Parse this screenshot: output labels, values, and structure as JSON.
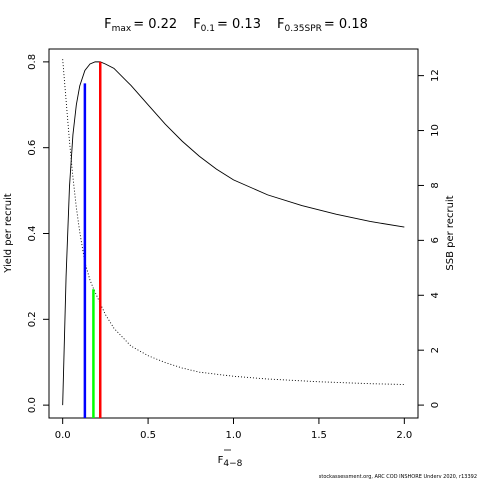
{
  "chart_data": {
    "type": "line",
    "title_parts": [
      {
        "base": "F",
        "sub": "max",
        "value": "= 0.22"
      },
      {
        "base": "F",
        "sub": "0.1",
        "value": "= 0.13"
      },
      {
        "base": "F",
        "sub": "0.35SPR",
        "value": "= 0.18"
      }
    ],
    "xlabel": {
      "base": "F",
      "sub": "4−8"
    },
    "ylabel_left": "Yield per recruit",
    "ylabel_right": "SSB per recruit",
    "xlim": [
      -0.08,
      2.08
    ],
    "ylim_left": [
      -0.03,
      0.83
    ],
    "ylim_right": [
      -0.47,
      12.97
    ],
    "x_ticks": [
      0.0,
      0.5,
      1.0,
      1.5,
      2.0
    ],
    "x_tick_labels": [
      "0.0",
      "0.5",
      "1.0",
      "1.5",
      "2.0"
    ],
    "y_left_ticks": [
      0.0,
      0.2,
      0.4,
      0.6,
      0.8
    ],
    "y_left_tick_labels": [
      "0.0",
      "0.2",
      "0.4",
      "0.6",
      "0.8"
    ],
    "y_right_ticks": [
      0,
      2,
      4,
      6,
      8,
      10,
      12
    ],
    "y_right_tick_labels": [
      "0",
      "2",
      "4",
      "6",
      "8",
      "10",
      "12"
    ],
    "series": [
      {
        "axis": "left",
        "style": "solid",
        "x": [
          0.0,
          0.02,
          0.04,
          0.06,
          0.08,
          0.1,
          0.13,
          0.16,
          0.19,
          0.22,
          0.25,
          0.3,
          0.4,
          0.5,
          0.6,
          0.7,
          0.8,
          0.9,
          1.0,
          1.2,
          1.4,
          1.6,
          1.8,
          2.0
        ],
        "y": [
          0.0,
          0.3,
          0.51,
          0.63,
          0.7,
          0.744,
          0.78,
          0.795,
          0.8,
          0.8,
          0.795,
          0.785,
          0.745,
          0.7,
          0.655,
          0.615,
          0.58,
          0.55,
          0.525,
          0.49,
          0.465,
          0.445,
          0.428,
          0.415
        ]
      },
      {
        "axis": "right",
        "style": "dotted",
        "x": [
          0.0,
          0.02,
          0.04,
          0.06,
          0.08,
          0.1,
          0.13,
          0.16,
          0.18,
          0.22,
          0.25,
          0.3,
          0.4,
          0.5,
          0.6,
          0.7,
          0.8,
          1.0,
          1.2,
          1.5,
          1.8,
          2.0
        ],
        "y": [
          12.6,
          11.1,
          9.6,
          8.3,
          7.2,
          6.3,
          5.2,
          4.55,
          4.25,
          3.7,
          3.3,
          2.8,
          2.15,
          1.8,
          1.55,
          1.35,
          1.2,
          1.05,
          0.95,
          0.85,
          0.78,
          0.75
        ]
      }
    ],
    "reference_lines": [
      {
        "x": 0.13,
        "color": "#0000ff",
        "y_top": 0.75
      },
      {
        "x": 0.18,
        "color": "#00ff00",
        "y_top": 0.27
      },
      {
        "x": 0.22,
        "color": "#ff0000",
        "y_top": 0.8
      }
    ],
    "grid": false,
    "legend": "none"
  },
  "credit": "stockassessment.org,  ARC COD INSHORE Underv 2020, r13392"
}
